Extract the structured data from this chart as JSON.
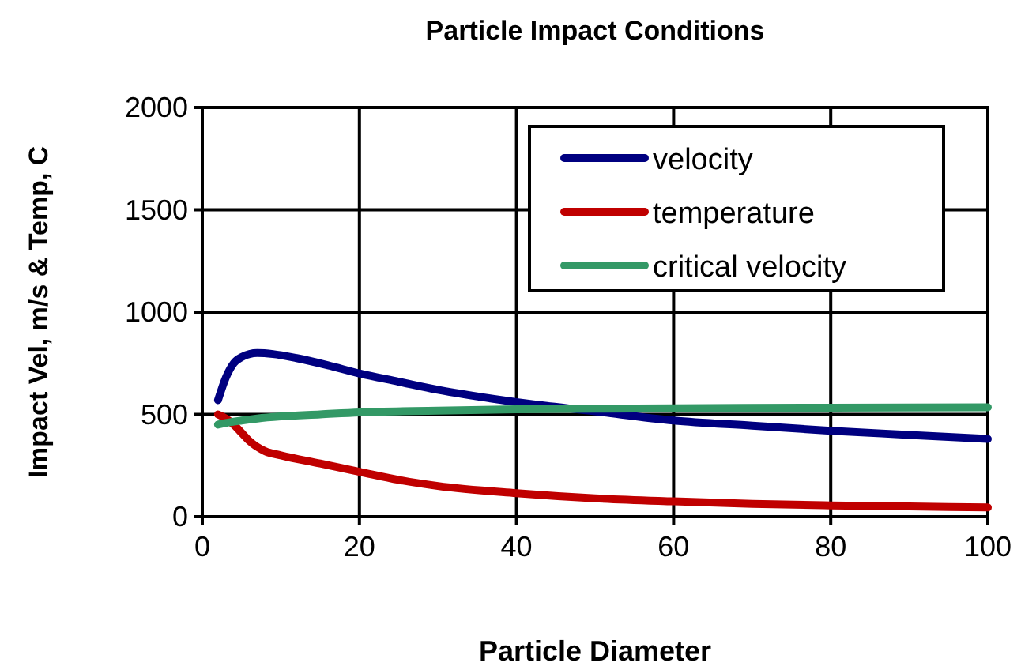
{
  "chart_data": {
    "type": "line",
    "title": "Particle Impact Conditions",
    "xlabel": "Particle Diameter",
    "ylabel": "Impact Vel, m/s & Temp, C",
    "xlim": [
      0,
      100
    ],
    "xticks": [
      0,
      20,
      40,
      60,
      80,
      100
    ],
    "ylim": [
      0,
      2000
    ],
    "yticks": [
      0,
      500,
      1000,
      1500,
      2000
    ],
    "grid": true,
    "legend": "top right",
    "marker": "none",
    "line_style": "solid",
    "series": [
      {
        "name": "velocity",
        "color": "#000080",
        "x": [
          2,
          3,
          4,
          5,
          7,
          9,
          12,
          16,
          20,
          25,
          30,
          40,
          50,
          60,
          70,
          80,
          90,
          100
        ],
        "values": [
          570,
          680,
          750,
          780,
          800,
          795,
          775,
          740,
          700,
          660,
          620,
          560,
          515,
          470,
          445,
          420,
          400,
          380
        ]
      },
      {
        "name": "temperature",
        "color": "#c00000",
        "x": [
          2,
          3,
          4,
          5,
          6,
          8,
          10,
          15,
          20,
          25,
          30,
          40,
          50,
          60,
          70,
          80,
          90,
          100
        ],
        "values": [
          500,
          480,
          450,
          410,
          370,
          320,
          300,
          260,
          220,
          180,
          150,
          115,
          90,
          75,
          63,
          55,
          50,
          45
        ]
      },
      {
        "name": "critical velocity",
        "color": "#339966",
        "x": [
          2,
          3,
          5,
          7,
          10,
          15,
          20,
          30,
          40,
          50,
          60,
          80,
          100
        ],
        "values": [
          450,
          458,
          470,
          480,
          490,
          500,
          510,
          518,
          525,
          528,
          530,
          533,
          535
        ]
      }
    ]
  }
}
